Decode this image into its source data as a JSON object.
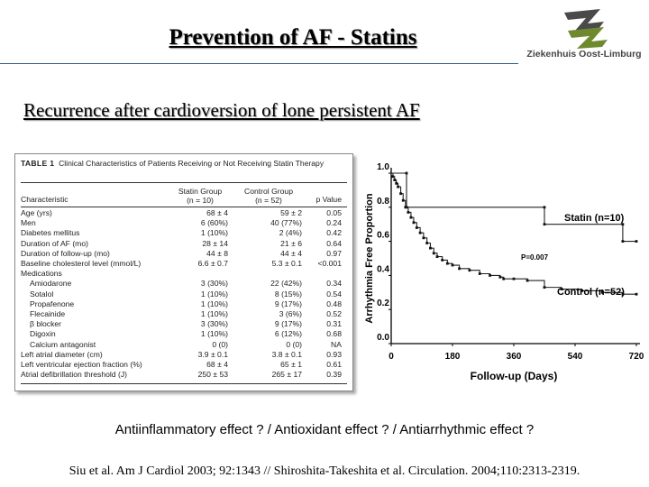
{
  "slide": {
    "title": "Prevention of AF - Statins",
    "subtitle": "Recurrence after cardioversion of lone persistent AF",
    "logo_text": "Ziekenhuis Oost-Limburg",
    "mechanisms": "Antiinflammatory effect ? / Antioxidant effect ? / Antiarrhythmic effect ?",
    "reference": "Siu et al. Am J Cardiol 2003; 92:1343 // Shiroshita-Takeshita et al. Circulation. 2004;110:2313-2319."
  },
  "table": {
    "label": "TABLE 1",
    "caption": "Clinical Characteristics of Patients Receiving or Not Receiving Statin Therapy",
    "headers": {
      "characteristic": "Characteristic",
      "statin": "Statin Group",
      "statin_n": "(n = 10)",
      "control": "Control Group",
      "control_n": "(n = 52)",
      "p": "p Value"
    },
    "rows": [
      {
        "label": "Age (yrs)",
        "statin": "68 ± 4",
        "control": "59 ± 2",
        "p": "0.05",
        "indent": false
      },
      {
        "label": "Men",
        "statin": "6 (60%)",
        "control": "40 (77%)",
        "p": "0.24",
        "indent": false
      },
      {
        "label": "Diabetes mellitus",
        "statin": "1 (10%)",
        "control": "2 (4%)",
        "p": "0.42",
        "indent": false
      },
      {
        "label": "Duration of AF (mo)",
        "statin": "28 ± 14",
        "control": "21 ± 6",
        "p": "0.64",
        "indent": false
      },
      {
        "label": "Duration of follow-up (mo)",
        "statin": "44 ± 8",
        "control": "44 ± 4",
        "p": "0.97",
        "indent": false
      },
      {
        "label": "Baseline cholesterol level (mmol/L)",
        "statin": "6.6 ± 0.7",
        "control": "5.3 ± 0.1",
        "p": "<0.001",
        "indent": false
      },
      {
        "label": "Medications",
        "statin": "",
        "control": "",
        "p": "",
        "indent": false
      },
      {
        "label": "Amiodarone",
        "statin": "3 (30%)",
        "control": "22 (42%)",
        "p": "0.34",
        "indent": true
      },
      {
        "label": "Sotalol",
        "statin": "1 (10%)",
        "control": "8 (15%)",
        "p": "0.54",
        "indent": true
      },
      {
        "label": "Propafenone",
        "statin": "1 (10%)",
        "control": "9 (17%)",
        "p": "0.48",
        "indent": true
      },
      {
        "label": "Flecainide",
        "statin": "1 (10%)",
        "control": "3 (6%)",
        "p": "0.52",
        "indent": true
      },
      {
        "label": "β blocker",
        "statin": "3 (30%)",
        "control": "9 (17%)",
        "p": "0.31",
        "indent": true
      },
      {
        "label": "Digoxin",
        "statin": "1 (10%)",
        "control": "6 (12%)",
        "p": "0.68",
        "indent": true
      },
      {
        "label": "Calcium antagonist",
        "statin": "0 (0)",
        "control": "0 (0)",
        "p": "NA",
        "indent": true
      },
      {
        "label": "Left atrial diameter (cm)",
        "statin": "3.9 ± 0.1",
        "control": "3.8 ± 0.1",
        "p": "0.93",
        "indent": false
      },
      {
        "label": "Left ventricular ejection fraction (%)",
        "statin": "68 ± 4",
        "control": "65 ± 1",
        "p": "0.61",
        "indent": false
      },
      {
        "label": "Atrial defibrillation threshold (J)",
        "statin": "250 ± 53",
        "control": "265 ± 17",
        "p": "0.39",
        "indent": false
      }
    ]
  },
  "chart_data": {
    "type": "line",
    "title": "",
    "xlabel": "Follow-up (Days)",
    "ylabel": "Arrhythmia Free Proportion",
    "xlim": [
      0,
      720
    ],
    "ylim": [
      0,
      1
    ],
    "x_ticks": [
      "0",
      "180",
      "360",
      "540",
      "720"
    ],
    "y_ticks": [
      "0.0",
      "0.2",
      "0.4",
      "0.6",
      "0.8",
      "1.0"
    ],
    "annotation": "P=0.007",
    "series": [
      {
        "name": "Statin (n=10)",
        "x": [
          0,
          45,
          45,
          450,
          450,
          680,
          680,
          720
        ],
        "y": [
          1.0,
          1.0,
          0.8,
          0.8,
          0.7,
          0.7,
          0.6,
          0.6
        ]
      },
      {
        "name": "Control (n=52)",
        "x": [
          0,
          5,
          10,
          15,
          20,
          28,
          35,
          42,
          50,
          58,
          66,
          75,
          85,
          95,
          105,
          115,
          125,
          135,
          150,
          165,
          180,
          200,
          230,
          260,
          290,
          320,
          330,
          360,
          400,
          450,
          500,
          560,
          620,
          680,
          720
        ],
        "y": [
          1.0,
          0.98,
          0.96,
          0.94,
          0.92,
          0.88,
          0.84,
          0.8,
          0.77,
          0.74,
          0.71,
          0.68,
          0.65,
          0.62,
          0.59,
          0.56,
          0.53,
          0.51,
          0.49,
          0.47,
          0.46,
          0.44,
          0.43,
          0.41,
          0.4,
          0.39,
          0.38,
          0.38,
          0.37,
          0.33,
          0.32,
          0.31,
          0.3,
          0.29,
          0.29
        ]
      }
    ]
  }
}
